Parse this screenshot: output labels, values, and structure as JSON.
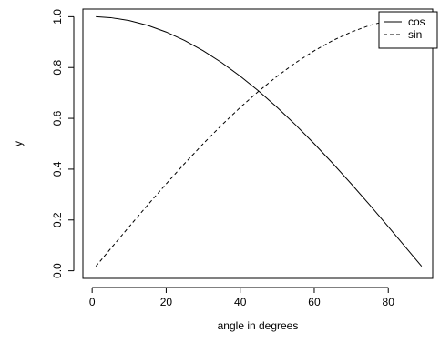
{
  "chart_data": {
    "type": "line",
    "title": "",
    "xlabel": "angle in degrees",
    "ylabel": "y",
    "xlim": [
      -2.5,
      92
    ],
    "ylim": [
      -0.03,
      1.03
    ],
    "xticks": [
      0,
      20,
      40,
      60,
      80
    ],
    "xtick_labels": [
      "0",
      "20",
      "40",
      "60",
      "80"
    ],
    "yticks": [
      0.0,
      0.2,
      0.4,
      0.6,
      0.8,
      1.0
    ],
    "ytick_labels": [
      "0.0",
      "0.2",
      "0.4",
      "0.6",
      "0.8",
      "1.0"
    ],
    "grid": false,
    "legend_position": "top-right",
    "x_range": [
      1,
      89
    ],
    "series": [
      {
        "name": "cos",
        "style": "solid",
        "color": "#000000",
        "x": [
          1,
          5,
          10,
          15,
          20,
          25,
          30,
          35,
          40,
          45,
          50,
          55,
          60,
          65,
          70,
          75,
          80,
          85,
          89
        ],
        "y": [
          0.9998,
          0.9962,
          0.9848,
          0.9659,
          0.9397,
          0.9063,
          0.866,
          0.8192,
          0.766,
          0.7071,
          0.6428,
          0.5736,
          0.5,
          0.4226,
          0.342,
          0.2588,
          0.1736,
          0.0872,
          0.0175
        ]
      },
      {
        "name": "sin",
        "style": "dashed",
        "color": "#000000",
        "x": [
          1,
          5,
          10,
          15,
          20,
          25,
          30,
          35,
          40,
          45,
          50,
          55,
          60,
          65,
          70,
          75,
          80,
          85,
          89
        ],
        "y": [
          0.0175,
          0.0872,
          0.1736,
          0.2588,
          0.342,
          0.4226,
          0.5,
          0.5736,
          0.6428,
          0.7071,
          0.766,
          0.8192,
          0.866,
          0.9063,
          0.9397,
          0.9659,
          0.9848,
          0.9962,
          0.9998
        ]
      }
    ]
  }
}
